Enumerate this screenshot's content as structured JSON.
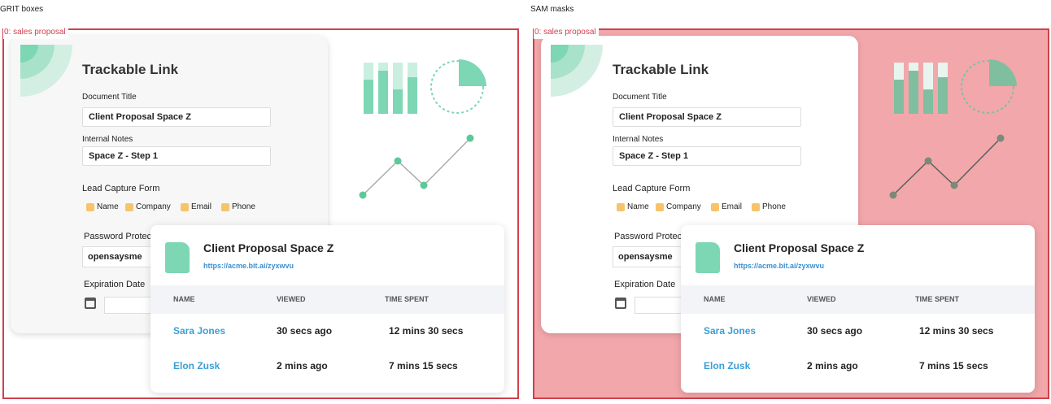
{
  "panels": [
    {
      "title": "GRIT boxes",
      "label": "0: sales proposal"
    },
    {
      "title": "SAM masks",
      "label": "0: sales proposal"
    }
  ],
  "ui": {
    "heading": "Trackable Link",
    "fields": [
      {
        "label": "Document Title",
        "value": "Client Proposal Space Z"
      },
      {
        "label": "Internal Notes",
        "value": "Space Z - Step 1"
      }
    ],
    "lead_form": {
      "label": "Lead Capture Form",
      "options": [
        "Name",
        "Company",
        "Email",
        "Phone"
      ]
    },
    "password": {
      "label": "Password Protec",
      "value": "opensaysme"
    },
    "expiration": {
      "label": "Expiration Date"
    },
    "popup": {
      "title": "Client Proposal Space Z",
      "link": "https://acme.bit.ai/zyxwvu",
      "columns": [
        "NAME",
        "VIEWED",
        "TIME SPENT"
      ],
      "rows": [
        [
          "Sara Jones",
          "30 secs ago",
          "12 mins 30 secs"
        ],
        [
          "Elon Zusk",
          "2 mins ago",
          "7 mins 15 secs"
        ]
      ]
    }
  }
}
